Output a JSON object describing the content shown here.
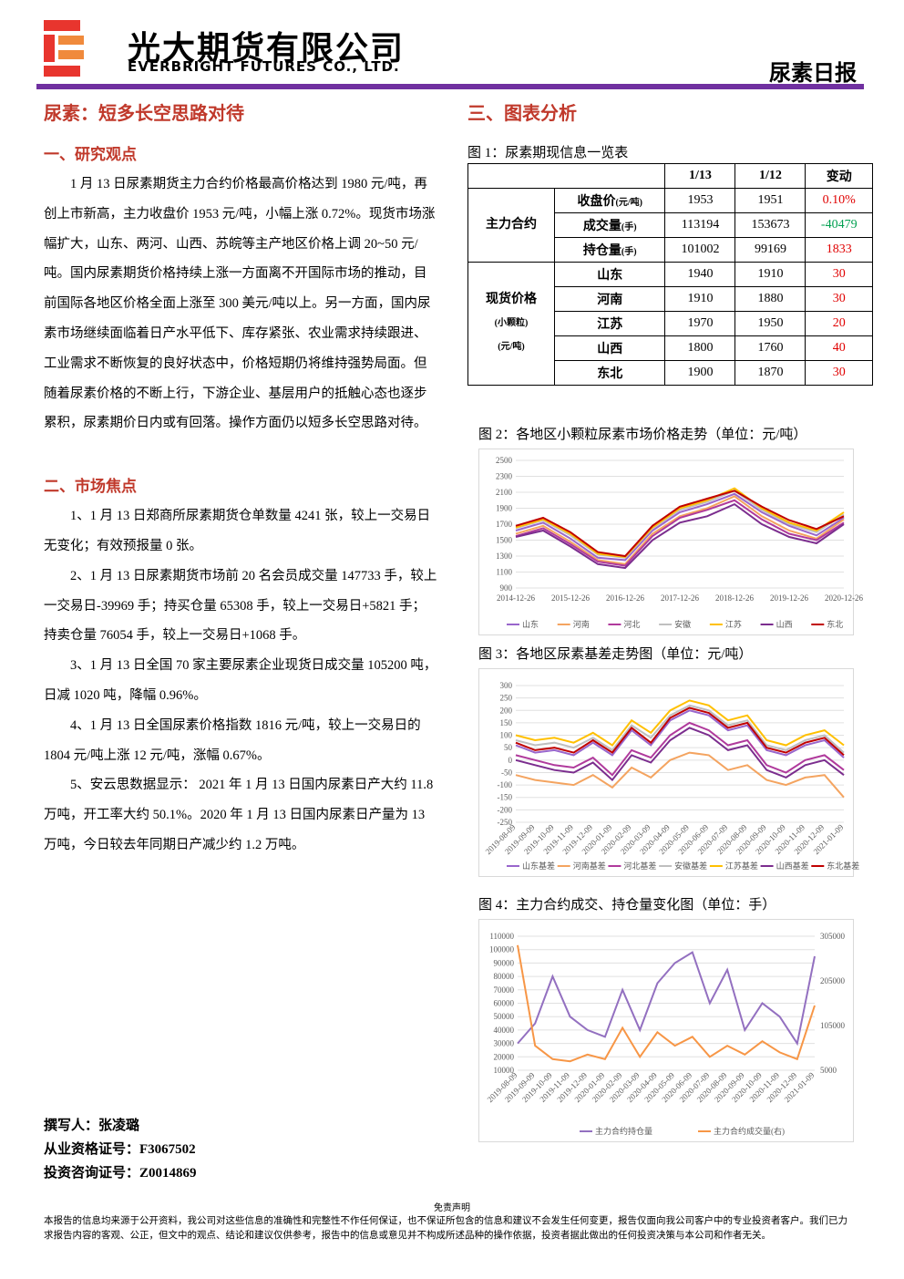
{
  "header": {
    "company_cn": "光大期货有限公司",
    "company_en": "EVERBRIGHT FUTURES CO., LTD.",
    "report": "尿素日报"
  },
  "left": {
    "title": "尿素：短多长空思路对待",
    "sections": [
      {
        "heading": "一、研究观点",
        "paragraphs": [
          "1 月 13 日尿素期货主力合约价格最高价格达到 1980 元/吨，再创上市新高，主力收盘价 1953 元/吨，小幅上涨 0.72%。现货市场涨幅扩大，山东、两河、山西、苏皖等主产地区价格上调 20~50 元/吨。国内尿素期货价格持续上涨一方面离不开国际市场的推动，目前国际各地区价格全面上涨至 300 美元/吨以上。另一方面，国内尿素市场继续面临着日产水平低下、库存紧张、农业需求持续跟进、工业需求不断恢复的良好状态中，价格短期仍将维持强势局面。但随着尿素价格的不断上行，下游企业、基层用户的抵触心态也逐步累积，尿素期价日内或有回落。操作方面仍以短多长空思路对待。"
        ]
      },
      {
        "heading": "二、市场焦点",
        "paragraphs": [
          "1、1 月 13 日郑商所尿素期货仓单数量 4241 张，较上一交易日无变化；有效预报量 0 张。",
          "2、1 月 13 日尿素期货市场前 20 名会员成交量 147733 手，较上一交易日-39969 手；持买仓量 65308 手，较上一交易日+5821 手；持卖仓量 76054 手，较上一交易日+1068 手。",
          "3、1 月 13 日全国 70 家主要尿素企业现货日成交量 105200 吨，日减 1020 吨，降幅 0.96%。",
          "4、1 月 13 日全国尿素价格指数 1816 元/吨，较上一交易日的 1804 元/吨上涨 12 元/吨，涨幅 0.67%。",
          "5、安云思数据显示： 2021 年 1 月 13 日国内尿素日产大约 11.8 万吨，开工率大约 50.1%。2020 年 1 月 13 日国内尿素日产量为 13 万吨，今日较去年同期日产减少约 1.2 万吨。"
        ]
      }
    ],
    "author": [
      "撰写人：张凌璐",
      "从业资格证号：F3067502",
      "投资咨询证号：Z0014869"
    ]
  },
  "right": {
    "heading": "三、图表分析",
    "table_caption": "图 1：尿素期现信息一览表",
    "table": {
      "columns": [
        "1/13",
        "1/12",
        "变动"
      ],
      "groups": [
        {
          "label": [
            "主力合约"
          ],
          "rows": [
            {
              "name": "收盘价",
              "unit": "(元/吨)",
              "cells": [
                1953,
                1951,
                "0.10%"
              ]
            },
            {
              "name": "成交量",
              "unit": "(手)",
              "cells": [
                113194,
                153673,
                "-40479"
              ]
            },
            {
              "name": "持仓量",
              "unit": "(手)",
              "cells": [
                101002,
                99169,
                "1833"
              ]
            }
          ]
        },
        {
          "label": [
            "现货价格",
            "(小颗粒)",
            "(元/吨)"
          ],
          "rows": [
            {
              "name": "山东",
              "cells": [
                1940,
                1910,
                "30"
              ]
            },
            {
              "name": "河南",
              "cells": [
                1910,
                1880,
                "30"
              ]
            },
            {
              "name": "江苏",
              "cells": [
                1970,
                1950,
                "20"
              ]
            },
            {
              "name": "山西",
              "cells": [
                1800,
                1760,
                "40"
              ]
            },
            {
              "name": "东北",
              "cells": [
                1900,
                1870,
                "30"
              ]
            }
          ]
        }
      ]
    }
  },
  "chart_data": [
    {
      "type": "line",
      "title": "图 2：各地区小颗粒尿素市场价格走势（单位：元/吨）",
      "categories": [
        "2014-12-26",
        null,
        "2015-12-26",
        null,
        "2016-12-26",
        null,
        "2017-12-26",
        null,
        "2018-12-26",
        null,
        "2019-12-26",
        null,
        "2020-12-26"
      ],
      "ylim": [
        900,
        2500
      ],
      "yticks": [
        900,
        1100,
        1300,
        1500,
        1700,
        1900,
        2100,
        2300,
        2500
      ],
      "series": [
        {
          "name": "山东",
          "color": "#9966cc",
          "values": [
            1620,
            1720,
            1520,
            1280,
            1250,
            1620,
            1850,
            1950,
            2080,
            1850,
            1680,
            1560,
            1780
          ]
        },
        {
          "name": "河南",
          "color": "#f4a460",
          "values": [
            1580,
            1680,
            1480,
            1250,
            1200,
            1580,
            1800,
            1900,
            2050,
            1800,
            1620,
            1520,
            1760
          ]
        },
        {
          "name": "河北",
          "color": "#b03a9c",
          "values": [
            1550,
            1650,
            1450,
            1230,
            1180,
            1550,
            1780,
            1880,
            2000,
            1760,
            1580,
            1500,
            1720
          ]
        },
        {
          "name": "安徽",
          "color": "#bfbfbf",
          "values": [
            1650,
            1750,
            1560,
            1320,
            1280,
            1650,
            1880,
            1980,
            2120,
            1880,
            1700,
            1600,
            1820
          ]
        },
        {
          "name": "江苏",
          "color": "#ffc000",
          "values": [
            1660,
            1760,
            1580,
            1330,
            1290,
            1660,
            1900,
            2000,
            2150,
            1900,
            1720,
            1620,
            1850
          ]
        },
        {
          "name": "山西",
          "color": "#7b2d8e",
          "values": [
            1540,
            1620,
            1420,
            1200,
            1150,
            1500,
            1720,
            1800,
            1950,
            1700,
            1540,
            1460,
            1700
          ]
        },
        {
          "name": "东北",
          "color": "#c00000",
          "values": [
            1680,
            1780,
            1600,
            1350,
            1300,
            1680,
            1920,
            2020,
            2120,
            1920,
            1750,
            1640,
            1800
          ]
        }
      ]
    },
    {
      "type": "line",
      "title": "图 3：各地区尿素基差走势图（单位：元/吨）",
      "categories": [
        "2019-08-09",
        "2019-09-09",
        "2019-10-09",
        "2019-11-09",
        "2019-12-09",
        "2020-01-09",
        "2020-02-09",
        "2020-03-09",
        "2020-04-09",
        "2020-05-09",
        "2020-06-09",
        "2020-07-09",
        "2020-08-09",
        "2020-09-09",
        "2020-10-09",
        "2020-11-09",
        "2020-12-09",
        "2021-01-09"
      ],
      "ylim": [
        -250,
        300
      ],
      "yticks": [
        -250,
        -200,
        -150,
        -100,
        -50,
        0,
        50,
        100,
        150,
        200,
        250,
        300
      ],
      "series": [
        {
          "name": "山东基差",
          "color": "#9966cc",
          "values": [
            60,
            30,
            40,
            20,
            70,
            20,
            120,
            60,
            160,
            200,
            180,
            120,
            140,
            40,
            20,
            60,
            80,
            10
          ]
        },
        {
          "name": "河南基差",
          "color": "#f4a460",
          "values": [
            -60,
            -80,
            -90,
            -100,
            -60,
            -110,
            -30,
            -70,
            0,
            30,
            20,
            -40,
            -20,
            -80,
            -100,
            -70,
            -60,
            -150
          ]
        },
        {
          "name": "河北基差",
          "color": "#b03a9c",
          "values": [
            20,
            0,
            -20,
            -30,
            10,
            -60,
            40,
            10,
            100,
            150,
            120,
            60,
            80,
            -20,
            -50,
            0,
            20,
            -40
          ]
        },
        {
          "name": "安徽基差",
          "color": "#bfbfbf",
          "values": [
            80,
            60,
            70,
            50,
            90,
            40,
            140,
            90,
            180,
            220,
            200,
            140,
            160,
            60,
            40,
            80,
            100,
            30
          ]
        },
        {
          "name": "江苏基差",
          "color": "#ffc000",
          "values": [
            100,
            80,
            90,
            70,
            110,
            60,
            160,
            110,
            200,
            240,
            220,
            160,
            180,
            80,
            60,
            100,
            120,
            60
          ]
        },
        {
          "name": "山西基差",
          "color": "#7b2d8e",
          "values": [
            0,
            -20,
            -40,
            -50,
            -10,
            -80,
            20,
            -10,
            80,
            130,
            100,
            40,
            60,
            -40,
            -70,
            -20,
            0,
            -60
          ]
        },
        {
          "name": "东北基差",
          "color": "#c00000",
          "values": [
            70,
            40,
            50,
            30,
            80,
            30,
            130,
            70,
            170,
            210,
            190,
            130,
            150,
            50,
            30,
            70,
            90,
            20
          ]
        }
      ]
    },
    {
      "type": "line",
      "title": "图 4：主力合约成交、持仓量变化图（单位：手）",
      "categories": [
        "2019-08-09",
        "2019-09-09",
        "2019-10-09",
        "2019-11-09",
        "2019-12-09",
        "2020-01-09",
        "2020-02-09",
        "2020-03-09",
        "2020-04-09",
        "2020-05-09",
        "2020-06-09",
        "2020-07-09",
        "2020-08-09",
        "2020-09-09",
        "2020-10-09",
        "2020-11-09",
        "2020-12-09",
        "2021-01-09"
      ],
      "ylim": [
        10000,
        110000
      ],
      "yticks": [
        10000,
        20000,
        30000,
        40000,
        50000,
        60000,
        70000,
        80000,
        90000,
        100000,
        110000
      ],
      "y2lim": [
        5000,
        305000
      ],
      "y2ticks": [
        5000,
        105000,
        205000,
        305000
      ],
      "series": [
        {
          "name": "主力合约持仓量",
          "color": "#9370c0",
          "values": [
            30000,
            45000,
            80000,
            50000,
            40000,
            35000,
            70000,
            40000,
            75000,
            90000,
            98000,
            60000,
            85000,
            40000,
            60000,
            50000,
            30000,
            95000
          ]
        },
        {
          "name": "主力合约成交量(右)",
          "color": "#f79646",
          "axis": "y2",
          "values": [
            285000,
            60000,
            30000,
            25000,
            40000,
            30000,
            100000,
            35000,
            90000,
            60000,
            80000,
            35000,
            60000,
            40000,
            70000,
            45000,
            30000,
            150000
          ]
        }
      ]
    }
  ],
  "footer": {
    "heading": "免责声明",
    "text": "本报告的信息均来源于公开资料，我公司对这些信息的准确性和完整性不作任何保证，也不保证所包含的信息和建议不会发生任何变更，报告仅面向我公司客户中的专业投资者客户。我们已力求报告内容的客观、公正，但文中的观点、结论和建议仅供参考，报告中的信息或意见并不构成所述品种的操作依据，投资者据此做出的任何投资决策与本公司和作者无关。"
  }
}
